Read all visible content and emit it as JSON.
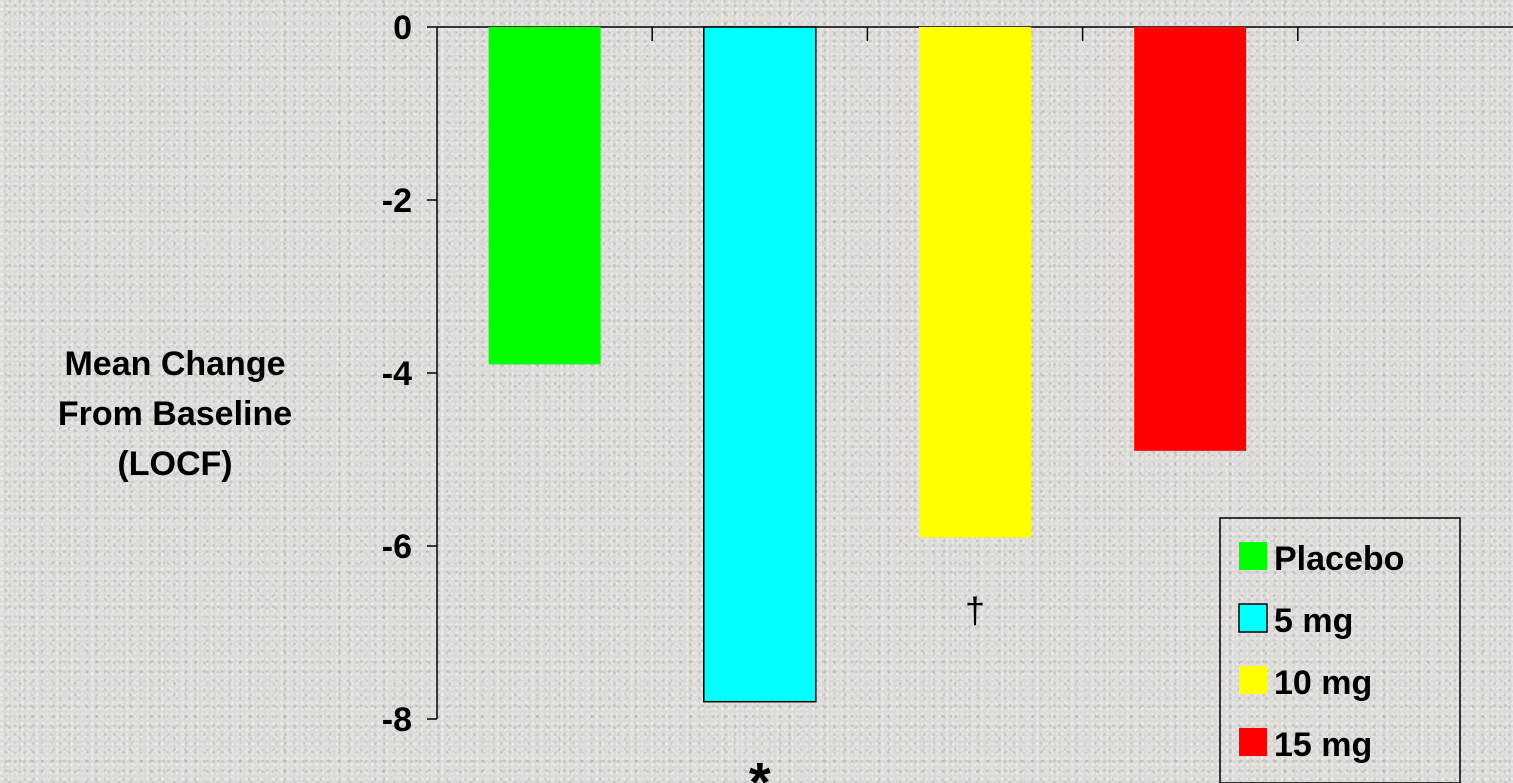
{
  "chart_data": {
    "type": "bar",
    "categories": [
      "Placebo",
      "5 mg",
      "10 mg",
      "15 mg"
    ],
    "values": [
      -3.9,
      -7.8,
      -5.9,
      -4.9
    ],
    "colors": [
      "#00ff00",
      "#00ffff",
      "#ffff00",
      "#ff0000"
    ],
    "ylabel": [
      "Mean Change",
      "From Baseline",
      "(LOCF)"
    ],
    "ylim": [
      -8,
      0
    ],
    "yticks": [
      "0",
      "-2",
      "-4",
      "-6",
      "-8"
    ],
    "ytick_values": [
      0,
      -2,
      -4,
      -6,
      -8
    ],
    "annotations": [
      {
        "category": "5 mg",
        "symbol": "*"
      },
      {
        "category": "10 mg",
        "symbol": "†"
      }
    ],
    "legend": {
      "position": "bottom-right",
      "entries": [
        "Placebo",
        "5 mg",
        "10 mg",
        "15 mg"
      ]
    },
    "grid": false
  }
}
